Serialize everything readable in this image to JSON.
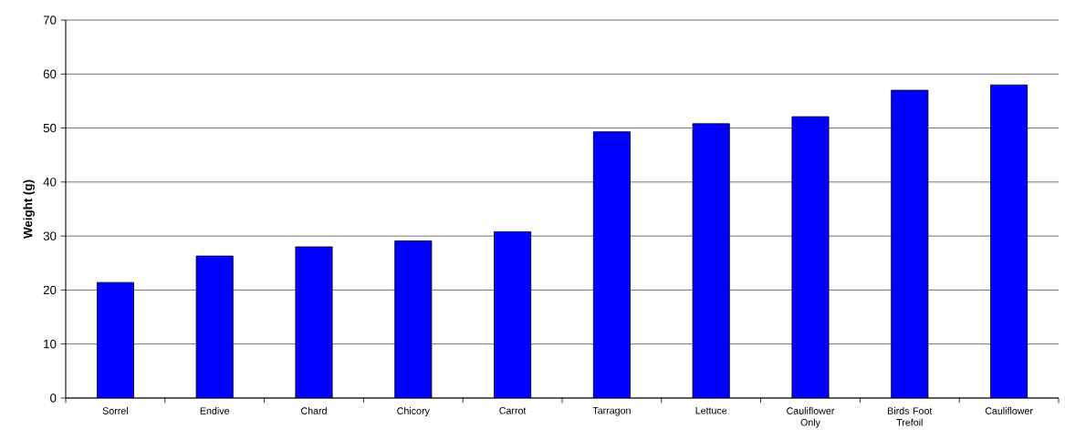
{
  "chart_data": {
    "type": "bar",
    "ylabel": "Weight (g)",
    "categories": [
      "Sorrel",
      "Endive",
      "Chard",
      "Chicory",
      "Carrot",
      "Tarragon",
      "Lettuce",
      "Cauliflower Only",
      "Birds Foot Trefoil",
      "Cauliflower"
    ],
    "values": [
      21.4,
      26.3,
      28.0,
      29.1,
      30.8,
      49.3,
      50.8,
      52.1,
      57.0,
      58.0
    ],
    "color": "#0000ff",
    "ylim": [
      0,
      70
    ],
    "yticks": [
      0,
      10,
      20,
      30,
      40,
      50,
      60,
      70
    ],
    "grid": "y"
  }
}
